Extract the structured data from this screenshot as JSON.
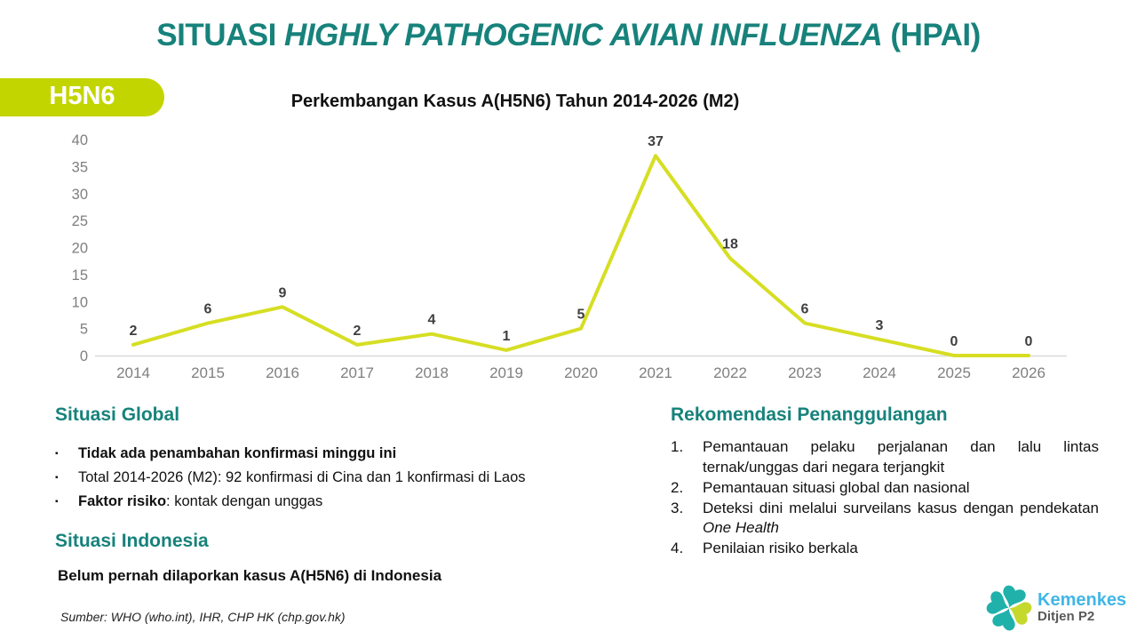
{
  "slide": {
    "title_segments": [
      {
        "t": "SITUASI "
      },
      {
        "t": "HIGHLY PATHOGENIC AVIAN INFLUENZA",
        "i": true
      },
      {
        "t": " (HPAI)"
      }
    ],
    "badge_label": "H5N6",
    "accent_teal": "#17827B",
    "accent_lime": "#C3D500"
  },
  "chart_data": {
    "type": "line",
    "title": "Perkembangan Kasus A(H5N6) Tahun 2014-2026 (M2)",
    "categories": [
      "2014",
      "2015",
      "2016",
      "2017",
      "2018",
      "2019",
      "2020",
      "2021",
      "2022",
      "2023",
      "2024",
      "2025",
      "2026"
    ],
    "values": [
      2,
      6,
      9,
      2,
      4,
      1,
      5,
      37,
      18,
      6,
      3,
      0,
      0
    ],
    "yticks": [
      0,
      5,
      10,
      15,
      20,
      25,
      30,
      35,
      40
    ],
    "ylim": [
      0,
      40
    ],
    "xlabel": "",
    "ylabel": "",
    "grid": false,
    "legend": "none",
    "line_color": "#D6DE23",
    "label_color": "#3F3F3F",
    "axis_text_color": "#7F7F7F",
    "axis_line_color": "#D9D9D9"
  },
  "global_section": {
    "heading": "Situasi Global",
    "bullets": [
      [
        {
          "t": "Tidak ada penambahan konfirmasi minggu ini",
          "b": true
        }
      ],
      [
        {
          "t": "Total 2014-2026 (M2): 92 konfirmasi di Cina dan 1 konfirmasi di Laos"
        }
      ],
      [
        {
          "t": "Faktor risiko",
          "b": true
        },
        {
          "t": ": kontak dengan unggas"
        }
      ]
    ]
  },
  "indonesia_section": {
    "heading": "Situasi Indonesia",
    "text": "Belum pernah dilaporkan kasus A(H5N6) di Indonesia"
  },
  "recommendations": {
    "heading": "Rekomendasi Penanggulangan",
    "items": [
      [
        {
          "t": "Pemantauan pelaku perjalanan dan lalu lintas ternak/unggas dari negara terjangkit"
        }
      ],
      [
        {
          "t": "Pemantauan situasi global dan nasional"
        }
      ],
      [
        {
          "t": "Deteksi dini melalui surveilans kasus dengan pendekatan "
        },
        {
          "t": "One Health",
          "i": true
        }
      ],
      [
        {
          "t": "Penilaian risiko berkala"
        }
      ]
    ]
  },
  "source_note": "Sumber: WHO (who.int), IHR, CHP HK (chp.gov.hk)",
  "logo": {
    "name": "Kemenkes",
    "sub": "Ditjen P2",
    "teal": "#1FB1AA",
    "lime": "#C5D92D",
    "blue": "#41B6E6",
    "gray": "#58595B"
  }
}
